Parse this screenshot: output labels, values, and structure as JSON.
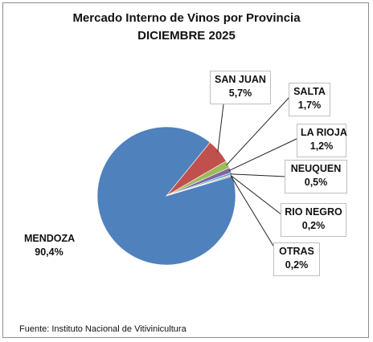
{
  "title_line1": "Mercado Interno de Vinos por Provincia",
  "title_line2": "DICIEMBRE 2025",
  "source": "Fuente: Instituto Nacional de Vitivinicultura",
  "chart_data": {
    "type": "pie",
    "title": "Mercado Interno de Vinos por Provincia DICIEMBRE 2025",
    "categories": [
      "MENDOZA",
      "SAN JUAN",
      "SALTA",
      "LA RIOJA",
      "NEUQUEN",
      "RIO NEGRO",
      "OTRAS"
    ],
    "values": [
      90.4,
      5.7,
      1.7,
      1.2,
      0.5,
      0.2,
      0.2
    ],
    "value_labels": [
      "90,4%",
      "5,7%",
      "1,7%",
      "1,2%",
      "0,5%",
      "0,2%",
      "0,2%"
    ],
    "colors": [
      "#4f81bd",
      "#c0504d",
      "#9bbb59",
      "#8064a2",
      "#4bacc6",
      "#f79646",
      "#2c4d75"
    ],
    "legend": "none"
  }
}
